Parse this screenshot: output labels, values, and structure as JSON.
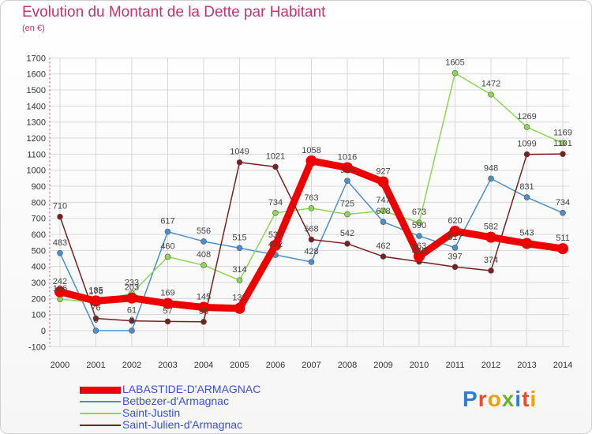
{
  "title": "Evolution du Montant de la Dette par Habitant",
  "subtitle": "(en €)",
  "logo": "Proxiti",
  "chart_data": {
    "type": "line",
    "x": [
      "2000",
      "2001",
      "2002",
      "2003",
      "2004",
      "2005",
      "2006",
      "2007",
      "2008",
      "2009",
      "2010",
      "2011",
      "2012",
      "2013",
      "2014"
    ],
    "ylim": [
      -100,
      1700
    ],
    "yticks": [
      -100,
      0,
      100,
      200,
      300,
      400,
      500,
      600,
      700,
      800,
      900,
      1000,
      1100,
      1200,
      1300,
      1400,
      1500,
      1600,
      1700
    ],
    "grid": true,
    "legend": "bottom-left",
    "series": [
      {
        "name": "Betbezer-d'Armagnac",
        "color": "#4a8fcc",
        "values": [
          483,
          0,
          0,
          617,
          556,
          515,
          472,
          428,
          934,
          678,
          590,
          517,
          948,
          831,
          734
        ],
        "labels": [
          "483",
          "0",
          "0",
          "617",
          "556",
          "515",
          "472",
          "428",
          "934",
          "678",
          "590",
          "517",
          "948",
          "831",
          "734"
        ]
      },
      {
        "name": "Saint-Justin",
        "color": "#8ed653",
        "values": [
          196,
          176,
          233,
          460,
          408,
          314,
          734,
          763,
          725,
          747,
          673,
          1605,
          1472,
          1269,
          1169
        ],
        "labels": [
          "196",
          "176",
          "233",
          "460",
          "408",
          "314",
          "734",
          "763",
          "725",
          "747",
          "673",
          "1605",
          "1472",
          "1269",
          "1169"
        ]
      },
      {
        "name": "Saint-Julien-d'Armagnac",
        "color": "#7a1f1f",
        "values": [
          710,
          76,
          61,
          57,
          55,
          1049,
          1021,
          568,
          542,
          462,
          430,
          397,
          374,
          1099,
          1101
        ],
        "labels": [
          "710",
          "76",
          "61",
          "57",
          "55",
          "1049",
          "1021",
          "568",
          "542",
          "462",
          "430",
          "397",
          "374",
          "1099",
          "1101"
        ]
      },
      {
        "name": "LABASTIDE-D'ARMAGNAC",
        "color": "#ee0000",
        "values": [
          242,
          185,
          203,
          169,
          145,
          139,
          532,
          1058,
          1016,
          927,
          463,
          620,
          582,
          543,
          511
        ],
        "labels": [
          "242",
          "185",
          "203",
          "169",
          "145",
          "139",
          "532",
          "1058",
          "1016",
          "927",
          "463",
          "620",
          "582",
          "543",
          "511"
        ]
      }
    ]
  }
}
